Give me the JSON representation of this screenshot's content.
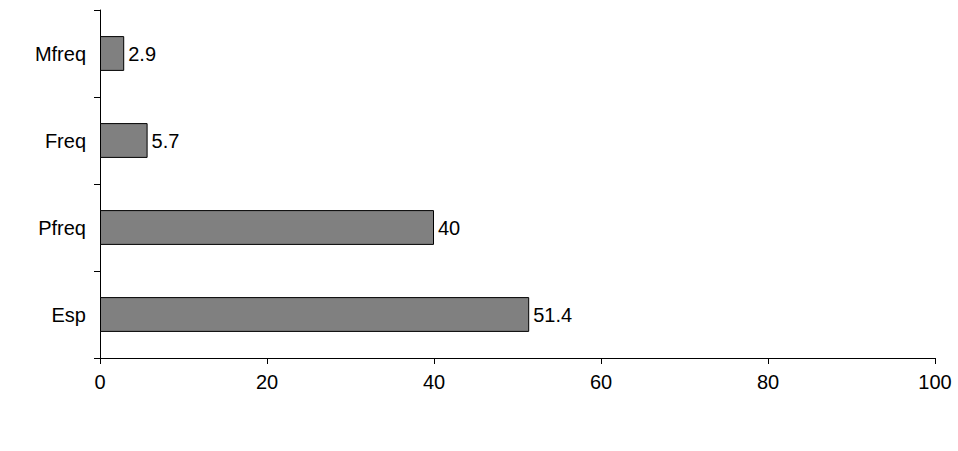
{
  "chart_data": {
    "type": "bar",
    "orientation": "horizontal",
    "categories": [
      "Esp",
      "Pfreq",
      "Freq",
      "Mfreq"
    ],
    "values": [
      51.4,
      40,
      5.7,
      2.9
    ],
    "color": "#808080",
    "xlim": [
      0,
      100
    ],
    "xticks": [
      0,
      20,
      40,
      60,
      80,
      100
    ],
    "grid": false,
    "data_labels": true
  }
}
